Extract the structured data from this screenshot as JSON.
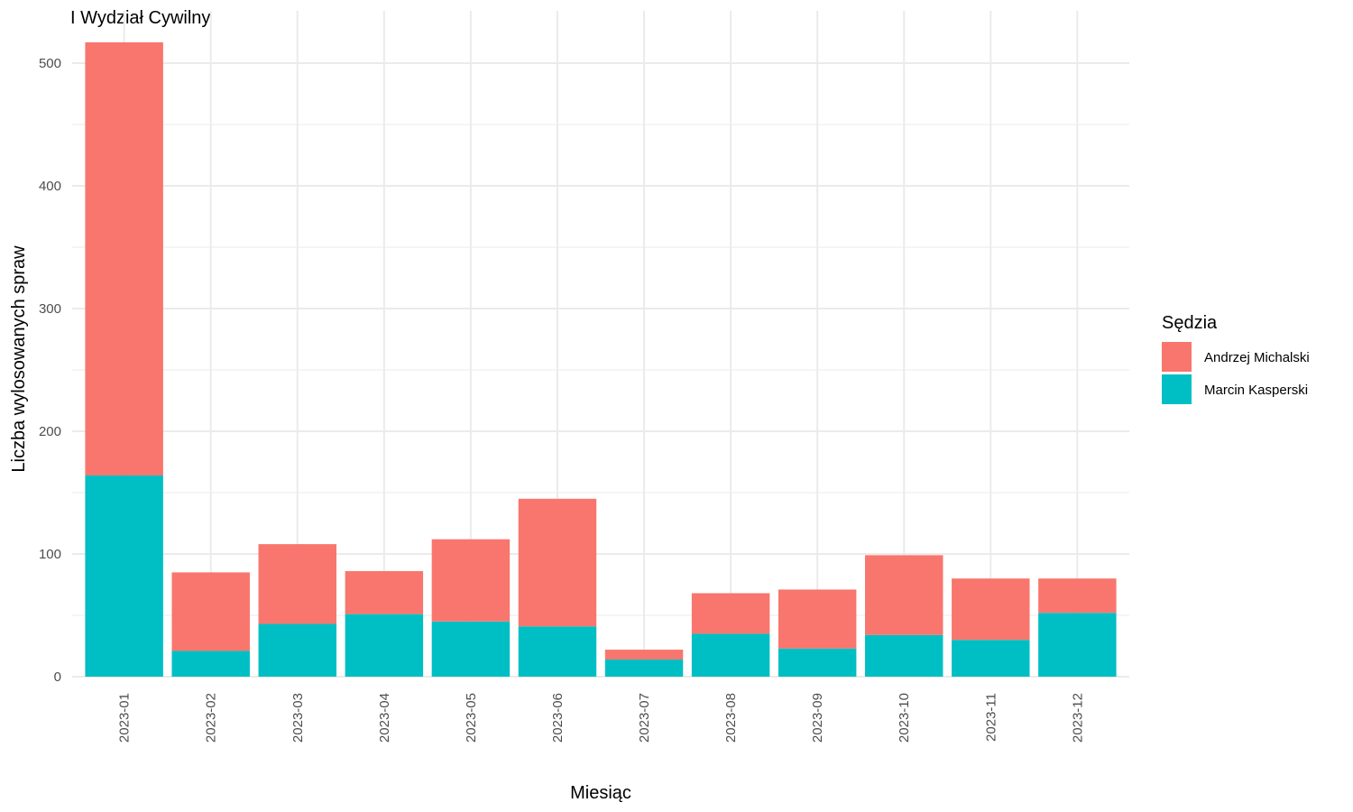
{
  "chart_data": {
    "type": "bar",
    "stacked": true,
    "title": "I Wydział Cywilny",
    "xlabel": "Miesiąc",
    "ylabel": "Liczba wylosowanych spraw",
    "categories": [
      "2023-01",
      "2023-02",
      "2023-03",
      "2023-04",
      "2023-05",
      "2023-06",
      "2023-07",
      "2023-08",
      "2023-09",
      "2023-10",
      "2023-11",
      "2023-12"
    ],
    "series": [
      {
        "name": "Marcin Kasperski",
        "color": "#00BFC4",
        "values": [
          164,
          21,
          43,
          51,
          45,
          41,
          14,
          35,
          23,
          34,
          30,
          52
        ]
      },
      {
        "name": "Andrzej Michalski",
        "color": "#F8766D",
        "values": [
          353,
          64,
          65,
          35,
          67,
          104,
          8,
          33,
          48,
          65,
          50,
          28
        ]
      }
    ],
    "yticks": [
      0,
      100,
      200,
      300,
      400,
      500
    ],
    "ylim": [
      0,
      517
    ],
    "grid": true,
    "legend": {
      "title": "Sędzia",
      "position": "right",
      "entries": [
        {
          "label": "Andrzej Michalski",
          "color": "#F8766D"
        },
        {
          "label": "Marcin Kasperski",
          "color": "#00BFC4"
        }
      ]
    }
  }
}
